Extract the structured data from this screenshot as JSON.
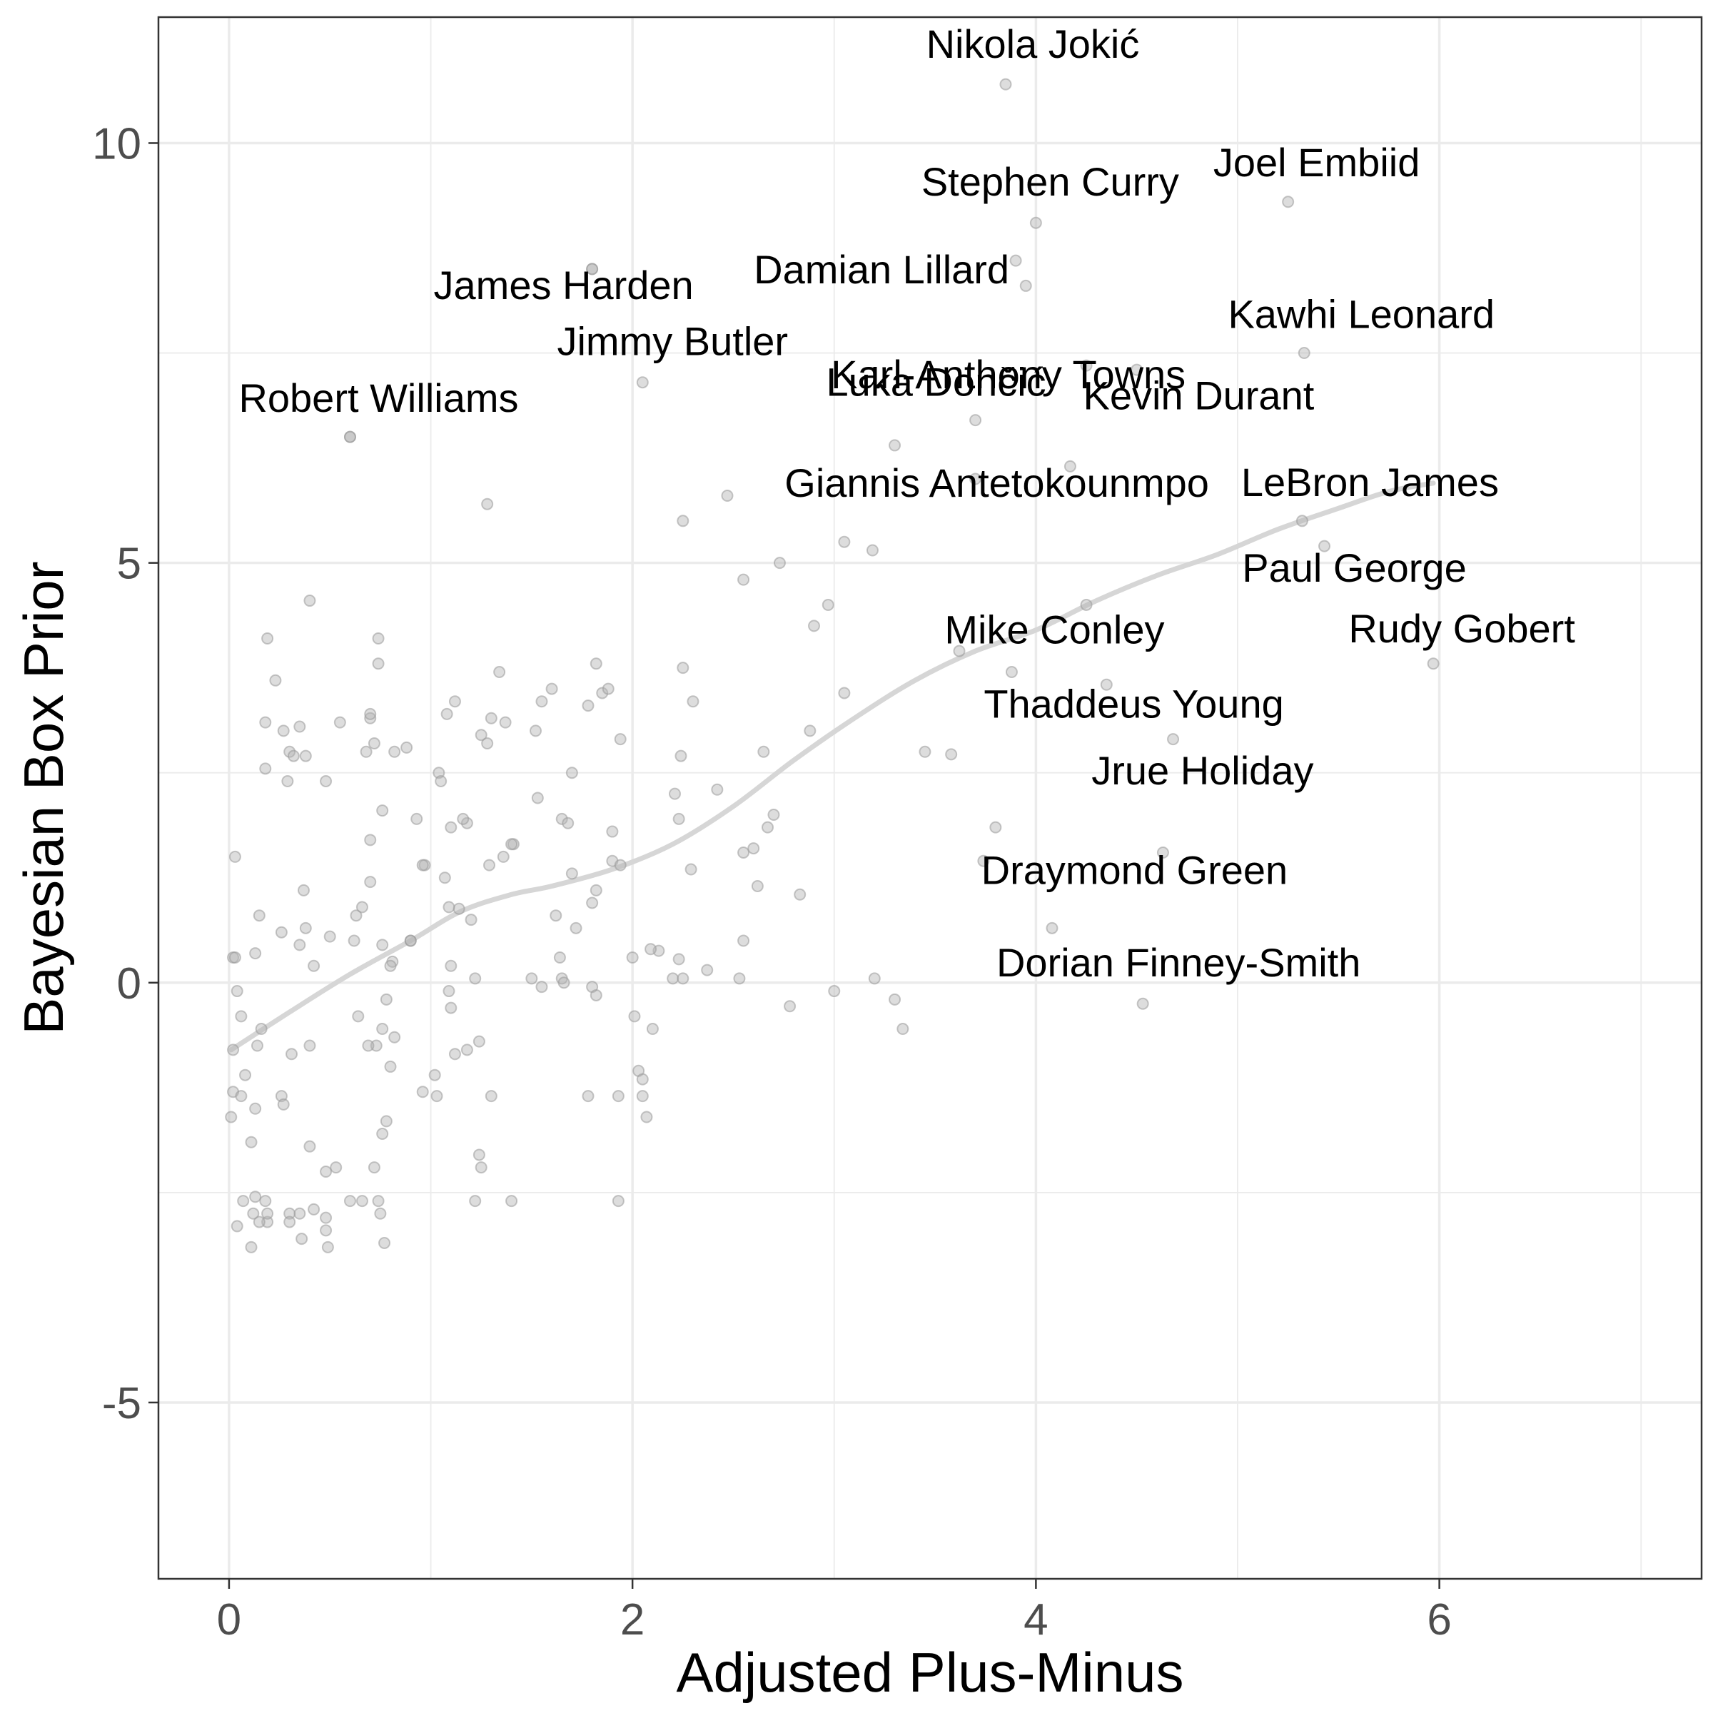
{
  "chart_data": {
    "type": "scatter",
    "title": "",
    "xlabel": "Adjusted Plus-Minus",
    "ylabel": "Bayesian Box Prior",
    "xlim": [
      -0.35,
      7.3
    ],
    "ylim": [
      -7.1,
      11.5
    ],
    "x_ticks": [
      0,
      2,
      4,
      6
    ],
    "y_ticks": [
      -5,
      0,
      5,
      10
    ],
    "x_tick_labels": [
      "0",
      "2",
      "4",
      "6"
    ],
    "y_tick_labels": [
      "-5",
      "0",
      "5",
      "10"
    ],
    "grid": true,
    "colors": {
      "point_fill": "#b3b3b3",
      "point_stroke": "#999999",
      "smooth_line": "#d6d6d6",
      "grid": "#ebebeb",
      "frame": "#333333"
    },
    "labeled_points": [
      {
        "name": "Nikola Jokić",
        "x": 3.85,
        "y": 10.7
      },
      {
        "name": "Joel Embiid",
        "x": 5.25,
        "y": 9.3
      },
      {
        "name": "Stephen Curry",
        "x": 4.0,
        "y": 9.05
      },
      {
        "name": "James Harden",
        "x": 1.8,
        "y": 8.5
      },
      {
        "name": "Damian Lillard",
        "x": 3.9,
        "y": 8.6
      },
      {
        "name": "Kawhi Leonard",
        "x": 5.33,
        "y": 7.5
      },
      {
        "name": "Karl-Anthony Towns",
        "x": 4.5,
        "y": 7.3
      },
      {
        "name": "Jimmy Butler",
        "x": 2.05,
        "y": 7.15
      },
      {
        "name": "Luka Dončić",
        "x": 3.7,
        "y": 6.7
      },
      {
        "name": "Kevin Durant",
        "x": 4.17,
        "y": 6.15
      },
      {
        "name": "Robert Williams",
        "x": 0.6,
        "y": 6.5
      },
      {
        "name": "Giannis Antetokounmpo",
        "x": 3.7,
        "y": 6.0
      },
      {
        "name": "LeBron James",
        "x": 5.32,
        "y": 5.5
      },
      {
        "name": "Paul George",
        "x": 5.43,
        "y": 5.2
      },
      {
        "name": "Rudy Gobert",
        "x": 5.97,
        "y": 3.8
      },
      {
        "name": "Mike Conley",
        "x": 3.88,
        "y": 3.7
      },
      {
        "name": "Thaddeus Young",
        "x": 4.68,
        "y": 2.9
      },
      {
        "name": "Jrue Holiday",
        "x": 3.8,
        "y": 1.85
      },
      {
        "name": "Draymond Green",
        "x": 4.63,
        "y": 1.55
      },
      {
        "name": "Dorian Finney-Smith",
        "x": 4.53,
        "y": -0.25
      }
    ],
    "points": [
      [
        3.3,
        6.4
      ],
      [
        4.25,
        7.35
      ],
      [
        3.95,
        8.3
      ],
      [
        2.47,
        5.8
      ],
      [
        2.25,
        5.5
      ],
      [
        1.28,
        5.7
      ],
      [
        3.05,
        5.25
      ],
      [
        3.19,
        5.15
      ],
      [
        2.73,
        5.0
      ],
      [
        2.55,
        4.8
      ],
      [
        2.97,
        4.5
      ],
      [
        2.9,
        4.25
      ],
      [
        4.25,
        4.5
      ],
      [
        4.35,
        3.55
      ],
      [
        3.62,
        3.95
      ],
      [
        3.45,
        2.75
      ],
      [
        3.58,
        2.72
      ],
      [
        2.65,
        2.75
      ],
      [
        2.88,
        3.0
      ],
      [
        3.05,
        3.45
      ],
      [
        2.3,
        3.35
      ],
      [
        2.25,
        3.75
      ],
      [
        2.24,
        2.7
      ],
      [
        2.42,
        2.3
      ],
      [
        2.21,
        2.25
      ],
      [
        2.23,
        1.95
      ],
      [
        2.7,
        2.0
      ],
      [
        2.67,
        1.85
      ],
      [
        2.6,
        1.6
      ],
      [
        2.55,
        1.55
      ],
      [
        2.62,
        1.15
      ],
      [
        2.83,
        1.05
      ],
      [
        2.29,
        1.35
      ],
      [
        2.13,
        0.38
      ],
      [
        2.09,
        0.4
      ],
      [
        2.2,
        0.05
      ],
      [
        2.23,
        0.28
      ],
      [
        2.25,
        0.05
      ],
      [
        2.37,
        0.15
      ],
      [
        2.53,
        0.05
      ],
      [
        2.55,
        0.5
      ],
      [
        2.78,
        -0.28
      ],
      [
        3.0,
        -0.1
      ],
      [
        3.2,
        0.05
      ],
      [
        3.3,
        -0.2
      ],
      [
        3.34,
        -0.55
      ],
      [
        4.08,
        0.65
      ],
      [
        3.74,
        1.45
      ],
      [
        1.8,
        8.5
      ],
      [
        0.6,
        6.5
      ],
      [
        1.82,
        3.8
      ],
      [
        1.85,
        3.45
      ],
      [
        1.88,
        3.5
      ],
      [
        1.78,
        3.3
      ],
      [
        1.94,
        2.9
      ],
      [
        1.9,
        1.8
      ],
      [
        1.9,
        1.45
      ],
      [
        1.94,
        1.4
      ],
      [
        1.82,
        1.1
      ],
      [
        1.8,
        0.95
      ],
      [
        1.7,
        2.5
      ],
      [
        1.65,
        1.95
      ],
      [
        1.68,
        1.9
      ],
      [
        1.7,
        1.3
      ],
      [
        1.72,
        0.65
      ],
      [
        1.62,
        0.8
      ],
      [
        1.64,
        0.3
      ],
      [
        1.65,
        0.05
      ],
      [
        1.66,
        0.0
      ],
      [
        1.8,
        -0.05
      ],
      [
        1.82,
        -0.15
      ],
      [
        1.55,
        -0.05
      ],
      [
        1.5,
        0.05
      ],
      [
        1.52,
        3.0
      ],
      [
        1.55,
        3.35
      ],
      [
        1.6,
        3.5
      ],
      [
        1.53,
        2.2
      ],
      [
        1.41,
        1.65
      ],
      [
        1.4,
        1.65
      ],
      [
        1.36,
        1.5
      ],
      [
        1.29,
        1.4
      ],
      [
        1.34,
        3.7
      ],
      [
        1.3,
        3.15
      ],
      [
        1.37,
        3.1
      ],
      [
        1.25,
        2.95
      ],
      [
        1.28,
        2.85
      ],
      [
        1.2,
        0.75
      ],
      [
        1.22,
        0.05
      ],
      [
        1.18,
        -0.8
      ],
      [
        1.24,
        -0.7
      ],
      [
        1.14,
        0.88
      ],
      [
        1.18,
        1.9
      ],
      [
        1.1,
        1.85
      ],
      [
        1.12,
        3.35
      ],
      [
        1.08,
        3.2
      ],
      [
        1.04,
        2.5
      ],
      [
        1.05,
        2.4
      ],
      [
        1.09,
        0.9
      ],
      [
        1.1,
        0.2
      ],
      [
        1.1,
        -0.3
      ],
      [
        1.09,
        -0.1
      ],
      [
        1.12,
        -0.85
      ],
      [
        1.02,
        -1.1
      ],
      [
        1.03,
        -1.35
      ],
      [
        0.96,
        -1.3
      ],
      [
        1.24,
        -2.05
      ],
      [
        1.25,
        -2.2
      ],
      [
        1.22,
        -2.6
      ],
      [
        1.4,
        -2.6
      ],
      [
        1.3,
        -1.35
      ],
      [
        1.78,
        -1.35
      ],
      [
        1.93,
        -1.35
      ],
      [
        1.93,
        -2.6
      ],
      [
        2.03,
        -1.05
      ],
      [
        2.05,
        -1.15
      ],
      [
        2.05,
        -1.35
      ],
      [
        2.07,
        -1.6
      ],
      [
        2.1,
        -0.55
      ],
      [
        2.01,
        -0.4
      ],
      [
        2.0,
        0.3
      ],
      [
        1.07,
        1.25
      ],
      [
        0.97,
        1.4
      ],
      [
        0.93,
        1.95
      ],
      [
        0.9,
        0.5
      ],
      [
        0.81,
        0.25
      ],
      [
        0.8,
        0.2
      ],
      [
        0.78,
        -0.2
      ],
      [
        0.82,
        -0.65
      ],
      [
        0.76,
        -0.55
      ],
      [
        0.73,
        -0.75
      ],
      [
        0.69,
        -0.75
      ],
      [
        0.64,
        -0.4
      ],
      [
        0.8,
        -1.0
      ],
      [
        0.78,
        -1.65
      ],
      [
        0.76,
        -1.8
      ],
      [
        0.72,
        -2.2
      ],
      [
        0.74,
        -2.6
      ],
      [
        0.75,
        -2.75
      ],
      [
        0.77,
        -3.1
      ],
      [
        0.66,
        -2.6
      ],
      [
        0.6,
        -2.6
      ],
      [
        0.53,
        -2.2
      ],
      [
        0.48,
        -2.25
      ],
      [
        0.48,
        -2.8
      ],
      [
        0.48,
        -2.95
      ],
      [
        0.49,
        -3.15
      ],
      [
        0.42,
        -2.7
      ],
      [
        0.4,
        -1.95
      ],
      [
        0.35,
        -2.75
      ],
      [
        0.36,
        -3.05
      ],
      [
        0.3,
        -2.75
      ],
      [
        0.3,
        -2.85
      ],
      [
        0.31,
        -0.85
      ],
      [
        0.26,
        -1.35
      ],
      [
        0.27,
        -1.45
      ],
      [
        0.18,
        -2.6
      ],
      [
        0.19,
        -2.85
      ],
      [
        0.19,
        -2.75
      ],
      [
        0.15,
        -2.85
      ],
      [
        0.13,
        -2.55
      ],
      [
        0.12,
        -2.75
      ],
      [
        0.11,
        -3.15
      ],
      [
        0.07,
        -2.6
      ],
      [
        0.04,
        -2.9
      ],
      [
        0.02,
        -0.8
      ],
      [
        0.02,
        -1.3
      ],
      [
        0.01,
        -1.6
      ],
      [
        0.06,
        -1.35
      ],
      [
        0.08,
        -1.1
      ],
      [
        0.11,
        -1.9
      ],
      [
        0.13,
        -1.5
      ],
      [
        0.14,
        -0.75
      ],
      [
        0.16,
        -0.55
      ],
      [
        0.06,
        -0.4
      ],
      [
        0.04,
        -0.1
      ],
      [
        0.02,
        0.3
      ],
      [
        0.03,
        0.3
      ],
      [
        0.03,
        1.5
      ],
      [
        0.13,
        0.35
      ],
      [
        0.15,
        0.8
      ],
      [
        0.26,
        0.6
      ],
      [
        0.29,
        2.4
      ],
      [
        0.3,
        2.75
      ],
      [
        0.32,
        2.7
      ],
      [
        0.27,
        3.0
      ],
      [
        0.18,
        2.55
      ],
      [
        0.18,
        3.1
      ],
      [
        0.19,
        4.1
      ],
      [
        0.23,
        3.6
      ],
      [
        0.35,
        3.05
      ],
      [
        0.38,
        2.7
      ],
      [
        0.4,
        4.55
      ],
      [
        0.42,
        0.2
      ],
      [
        0.38,
        0.65
      ],
      [
        0.37,
        1.1
      ],
      [
        0.35,
        0.45
      ],
      [
        0.5,
        0.55
      ],
      [
        0.48,
        2.4
      ],
      [
        0.55,
        3.1
      ],
      [
        0.62,
        0.5
      ],
      [
        0.63,
        0.8
      ],
      [
        0.66,
        0.9
      ],
      [
        0.68,
        2.75
      ],
      [
        0.7,
        3.15
      ],
      [
        0.7,
        3.2
      ],
      [
        0.72,
        2.85
      ],
      [
        0.74,
        3.8
      ],
      [
        0.74,
        4.1
      ],
      [
        0.7,
        1.2
      ],
      [
        0.7,
        1.7
      ],
      [
        0.76,
        2.05
      ],
      [
        0.76,
        0.45
      ],
      [
        0.82,
        2.75
      ],
      [
        0.88,
        2.8
      ],
      [
        0.9,
        0.5
      ],
      [
        0.96,
        1.4
      ],
      [
        1.16,
        1.95
      ],
      [
        0.4,
        -0.75
      ]
    ],
    "smooth_line": [
      [
        0.01,
        -0.8
      ],
      [
        0.3,
        -0.35
      ],
      [
        0.6,
        0.1
      ],
      [
        0.9,
        0.5
      ],
      [
        1.15,
        0.85
      ],
      [
        1.4,
        1.05
      ],
      [
        1.6,
        1.15
      ],
      [
        1.9,
        1.35
      ],
      [
        2.2,
        1.65
      ],
      [
        2.5,
        2.1
      ],
      [
        2.8,
        2.65
      ],
      [
        3.1,
        3.15
      ],
      [
        3.4,
        3.6
      ],
      [
        3.7,
        3.95
      ],
      [
        4.0,
        4.2
      ],
      [
        4.3,
        4.55
      ],
      [
        4.6,
        4.85
      ],
      [
        4.9,
        5.1
      ],
      [
        5.2,
        5.4
      ],
      [
        5.5,
        5.65
      ],
      [
        5.75,
        5.85
      ],
      [
        5.97,
        5.95
      ]
    ],
    "label_offsets": {
      "note": "visual only"
    }
  }
}
